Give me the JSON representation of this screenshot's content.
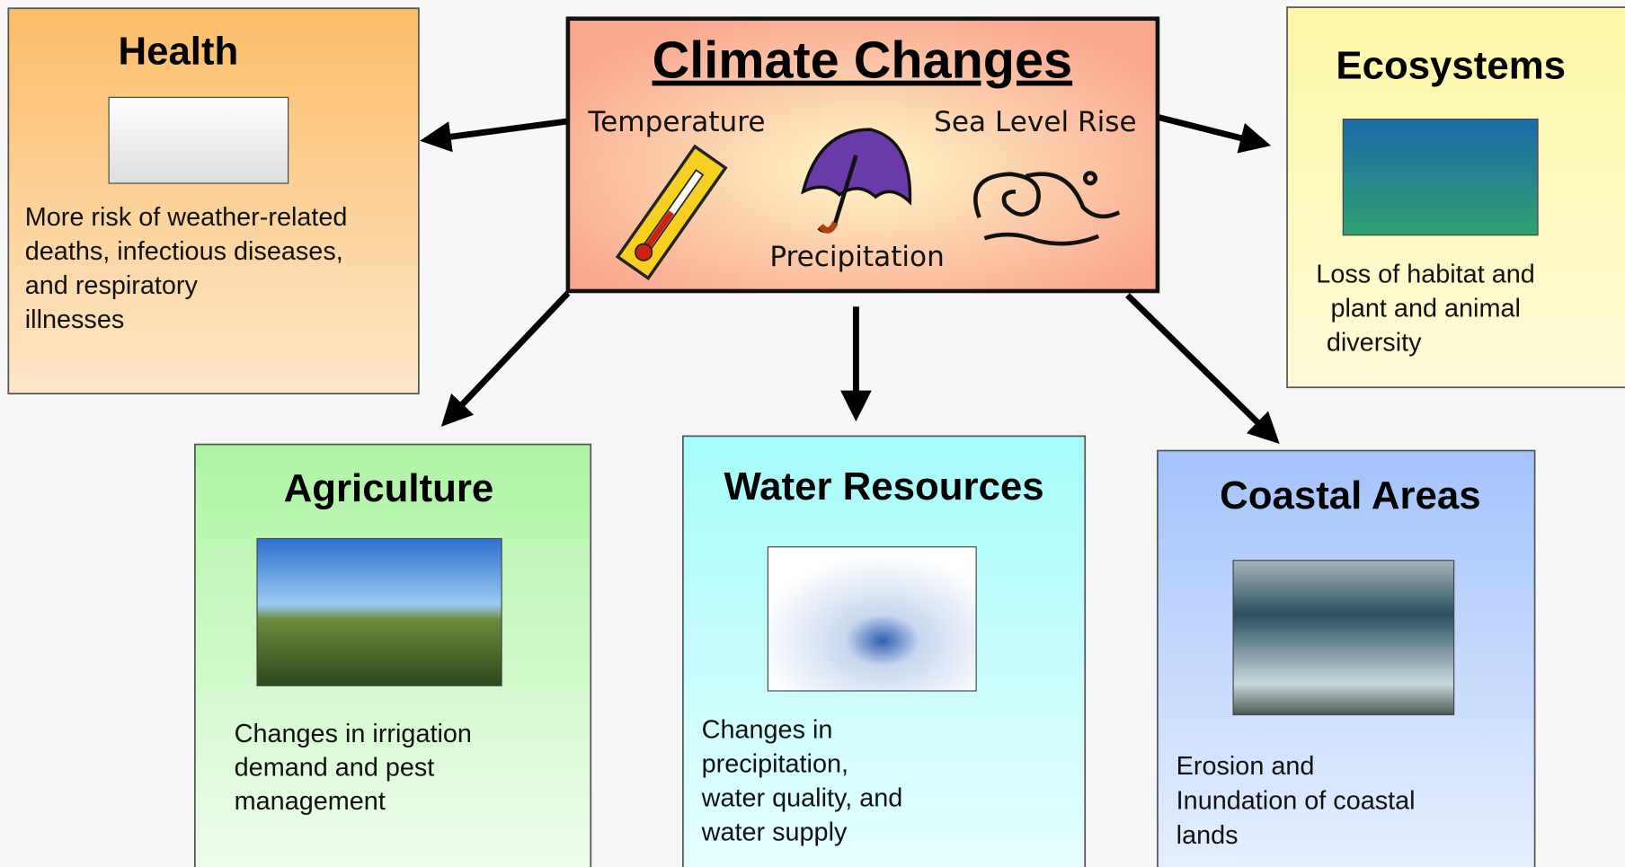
{
  "center": {
    "title": "Climate Changes",
    "labels": [
      "Temperature",
      "Precipitation",
      "Sea Level Rise"
    ]
  },
  "nodes": [
    {
      "title": "Health",
      "lines": [
        "More risk of weather-related",
        "deaths, infectious  diseases,",
        "and respiratory",
        "illnesses"
      ]
    },
    {
      "title": "Ecosystems",
      "lines": [
        "Loss of habitat and",
        "plant and animal",
        "diversity"
      ]
    },
    {
      "title": "Agriculture",
      "lines": [
        "Changes in irrigation",
        "demand and pest",
        "management"
      ]
    },
    {
      "title": "Water Resources",
      "lines": [
        "Changes in",
        "precipitation,",
        "water quality, and",
        "water supply"
      ]
    },
    {
      "title": "Coastal Areas",
      "lines": [
        "Erosion and",
        "Inundation of coastal",
        "lands"
      ]
    }
  ]
}
